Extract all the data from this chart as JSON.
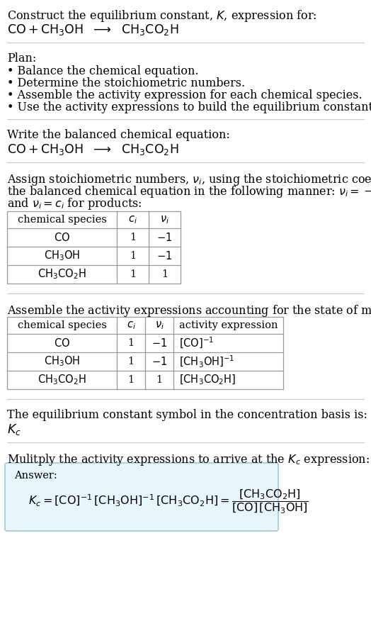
{
  "bg_color": "#ffffff",
  "text_color": "#000000",
  "font_size": 11.5,
  "font_size_small": 10.5,
  "font_size_eq": 12.5,
  "separator_color": "#cccccc",
  "table_border_color": "#999999",
  "answer_box_face": "#e8f6fb",
  "answer_box_edge": "#a0c8d8"
}
